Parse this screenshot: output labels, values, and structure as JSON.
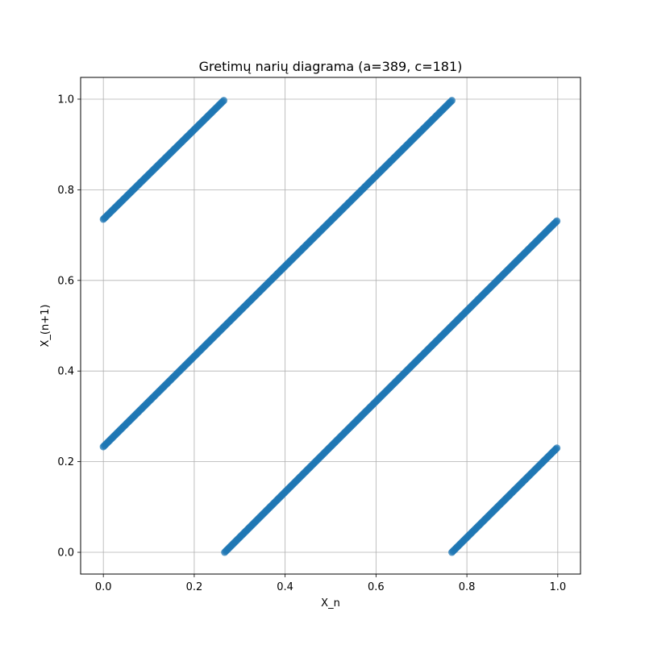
{
  "chart_data": {
    "type": "scatter",
    "title": "Gretimų narių diagrama (a=389, c=181)",
    "xlabel": "X_n",
    "ylabel": "X_(n+1)",
    "xlim": [
      -0.05,
      1.05
    ],
    "ylim": [
      -0.048,
      1.048
    ],
    "xticks": [
      0.0,
      0.2,
      0.4,
      0.6,
      0.8,
      1.0
    ],
    "yticks": [
      0.0,
      0.2,
      0.4,
      0.6,
      0.8,
      1.0
    ],
    "xtick_labels": [
      "0.0",
      "0.2",
      "0.4",
      "0.6",
      "0.8",
      "1.0"
    ],
    "ytick_labels": [
      "0.0",
      "0.2",
      "0.4",
      "0.6",
      "0.8",
      "1.0"
    ],
    "grid": true,
    "color": "#1f77b4",
    "segments": [
      {
        "x_start": 0.0,
        "y_start": 0.735,
        "x_end": 0.265,
        "y_end": 0.997
      },
      {
        "x_start": 0.0,
        "y_start": 0.233,
        "x_end": 0.767,
        "y_end": 0.997
      },
      {
        "x_start": 0.267,
        "y_start": 0.0,
        "x_end": 0.998,
        "y_end": 0.731
      },
      {
        "x_start": 0.767,
        "y_start": 0.0,
        "x_end": 0.998,
        "y_end": 0.23
      }
    ]
  }
}
